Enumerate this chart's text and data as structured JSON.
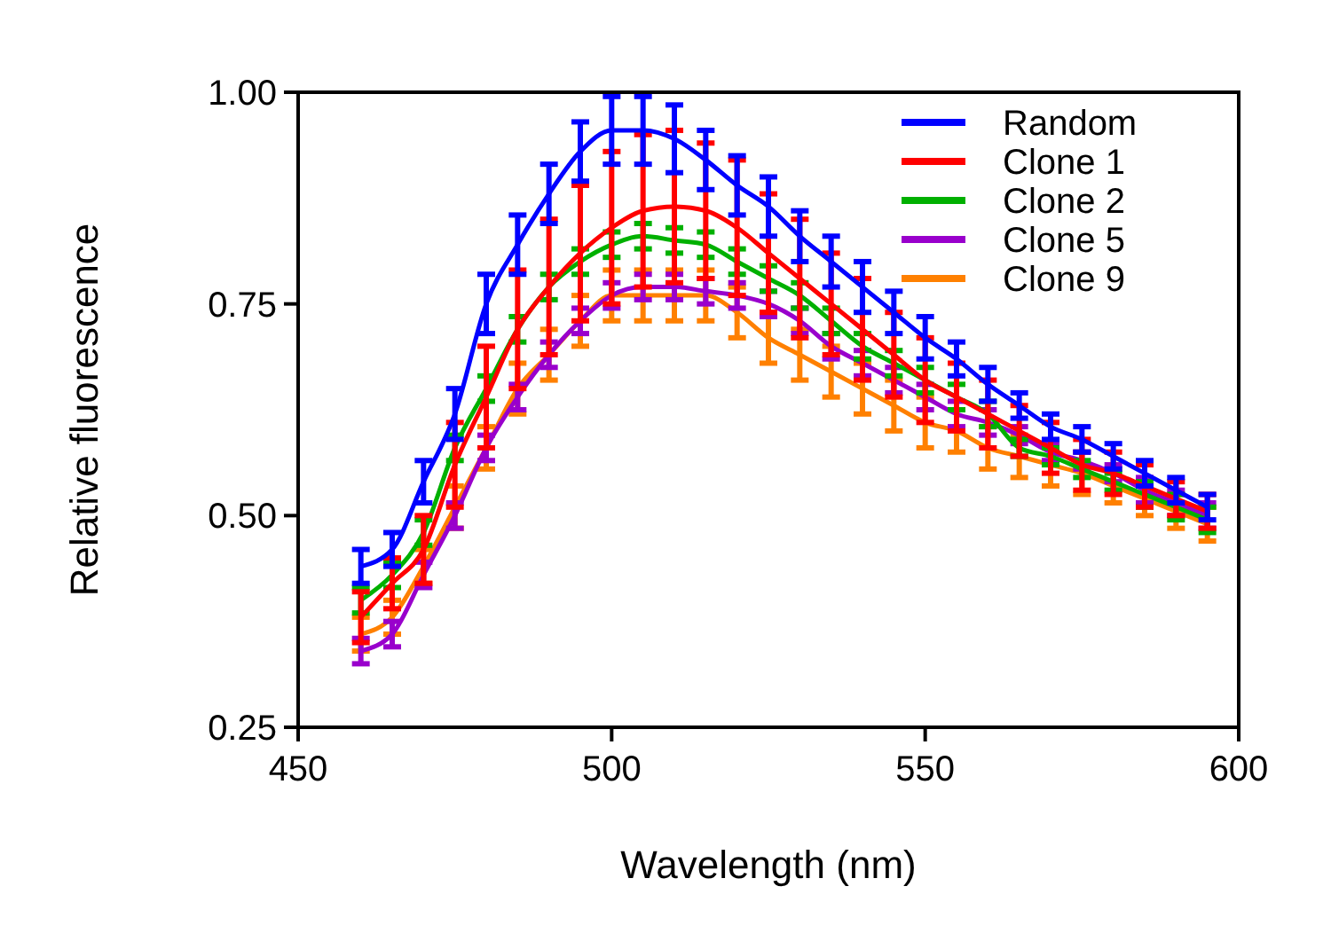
{
  "chart_data": {
    "type": "line",
    "xlabel": "Wavelength (nm)",
    "ylabel": "Relative fluorescence",
    "x": [
      460,
      465,
      470,
      475,
      480,
      485,
      490,
      495,
      500,
      505,
      510,
      515,
      520,
      525,
      530,
      535,
      540,
      545,
      550,
      555,
      560,
      565,
      570,
      575,
      580,
      585,
      590,
      595
    ],
    "series": [
      {
        "name": "Random",
        "color": "#0000ff",
        "values": [
          0.44,
          0.46,
          0.54,
          0.62,
          0.75,
          0.82,
          0.88,
          0.93,
          0.955,
          0.955,
          0.945,
          0.92,
          0.89,
          0.865,
          0.83,
          0.8,
          0.77,
          0.74,
          0.71,
          0.685,
          0.655,
          0.63,
          0.605,
          0.59,
          0.57,
          0.55,
          0.53,
          0.51
        ],
        "errors": [
          0.02,
          0.02,
          0.025,
          0.03,
          0.035,
          0.035,
          0.035,
          0.035,
          0.04,
          0.04,
          0.04,
          0.035,
          0.035,
          0.035,
          0.03,
          0.03,
          0.03,
          0.025,
          0.025,
          0.02,
          0.02,
          0.015,
          0.015,
          0.015,
          0.015,
          0.015,
          0.015,
          0.015
        ]
      },
      {
        "name": "Clone 1",
        "color": "#ff0000",
        "values": [
          0.38,
          0.42,
          0.46,
          0.56,
          0.64,
          0.72,
          0.77,
          0.81,
          0.84,
          0.86,
          0.865,
          0.86,
          0.84,
          0.81,
          0.78,
          0.75,
          0.72,
          0.69,
          0.66,
          0.64,
          0.62,
          0.6,
          0.58,
          0.56,
          0.55,
          0.535,
          0.52,
          0.505
        ],
        "errors": [
          0.03,
          0.03,
          0.04,
          0.05,
          0.06,
          0.07,
          0.08,
          0.08,
          0.09,
          0.09,
          0.09,
          0.08,
          0.08,
          0.07,
          0.07,
          0.06,
          0.06,
          0.05,
          0.05,
          0.04,
          0.04,
          0.03,
          0.03,
          0.03,
          0.025,
          0.025,
          0.02,
          0.02
        ]
      },
      {
        "name": "Clone 2",
        "color": "#00b000",
        "values": [
          0.4,
          0.43,
          0.48,
          0.58,
          0.65,
          0.72,
          0.77,
          0.8,
          0.82,
          0.83,
          0.825,
          0.82,
          0.8,
          0.78,
          0.76,
          0.73,
          0.7,
          0.68,
          0.66,
          0.64,
          0.62,
          0.58,
          0.57,
          0.555,
          0.54,
          0.525,
          0.51,
          0.495
        ],
        "errors": [
          0.015,
          0.015,
          0.015,
          0.015,
          0.015,
          0.015,
          0.015,
          0.015,
          0.015,
          0.015,
          0.015,
          0.015,
          0.015,
          0.015,
          0.015,
          0.015,
          0.015,
          0.015,
          0.015,
          0.015,
          0.015,
          0.01,
          0.01,
          0.01,
          0.01,
          0.015,
          0.015,
          0.015
        ]
      },
      {
        "name": "Clone 5",
        "color": "#9900cc",
        "values": [
          0.34,
          0.36,
          0.43,
          0.5,
          0.58,
          0.64,
          0.69,
          0.73,
          0.76,
          0.77,
          0.77,
          0.765,
          0.76,
          0.75,
          0.73,
          0.7,
          0.68,
          0.66,
          0.64,
          0.62,
          0.61,
          0.595,
          0.575,
          0.565,
          0.55,
          0.53,
          0.515,
          0.5
        ],
        "errors": [
          0.015,
          0.015,
          0.015,
          0.015,
          0.015,
          0.015,
          0.015,
          0.015,
          0.015,
          0.015,
          0.015,
          0.015,
          0.015,
          0.015,
          0.015,
          0.015,
          0.015,
          0.015,
          0.015,
          0.015,
          0.015,
          0.01,
          0.01,
          0.01,
          0.01,
          0.015,
          0.015,
          0.015
        ]
      },
      {
        "name": "Clone 9",
        "color": "#ff8000",
        "values": [
          0.36,
          0.38,
          0.44,
          0.51,
          0.58,
          0.65,
          0.69,
          0.73,
          0.76,
          0.76,
          0.76,
          0.76,
          0.74,
          0.71,
          0.69,
          0.67,
          0.65,
          0.63,
          0.61,
          0.6,
          0.58,
          0.57,
          0.56,
          0.55,
          0.535,
          0.52,
          0.505,
          0.49
        ],
        "errors": [
          0.02,
          0.02,
          0.02,
          0.025,
          0.025,
          0.03,
          0.03,
          0.03,
          0.03,
          0.03,
          0.03,
          0.03,
          0.03,
          0.03,
          0.03,
          0.03,
          0.03,
          0.03,
          0.03,
          0.025,
          0.025,
          0.025,
          0.025,
          0.025,
          0.02,
          0.02,
          0.02,
          0.02
        ]
      }
    ],
    "xlim": [
      450,
      600
    ],
    "xticks": [
      450,
      500,
      550,
      600
    ],
    "ylim": [
      0.25,
      1.0
    ],
    "yticks": [
      {
        "value": 0.25,
        "label": "0.25"
      },
      {
        "value": 0.5,
        "label": "0.50"
      },
      {
        "value": 0.75,
        "label": "0.75"
      },
      {
        "value": 1.0,
        "label": "1.00"
      }
    ],
    "legend": "top right",
    "marker": "none",
    "line_style": "solid",
    "grid": false
  }
}
